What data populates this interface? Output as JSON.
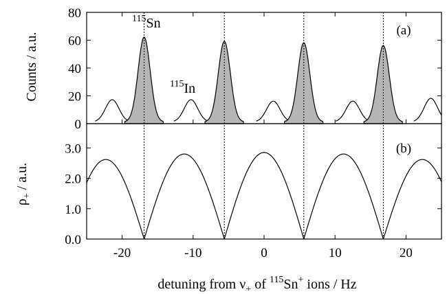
{
  "chart_data": [
    {
      "panel": "(a)",
      "type": "area",
      "ylabel": "Counts / a.u.",
      "ylim": [
        0,
        80
      ],
      "xlim": [
        -25,
        25
      ],
      "yticks": [
        "0",
        "20",
        "40",
        "60",
        "80"
      ],
      "annotations": [
        {
          "mass": "115",
          "element": "Sn",
          "x": -16.0,
          "y": 62
        },
        {
          "mass": "115",
          "element": "In",
          "x": -10.5,
          "y": 24
        }
      ],
      "series": [
        {
          "name": "115In",
          "fill": "none",
          "peaks": [
            {
              "center": -21.4,
              "height": 16
            },
            {
              "center": -10.3,
              "height": 16
            },
            {
              "center": 1.3,
              "height": 15
            },
            {
              "center": 12.5,
              "height": 15
            },
            {
              "center": 23.5,
              "height": 17
            }
          ],
          "width": 0.95,
          "baseline": 1.2
        },
        {
          "name": "115Sn",
          "fill": "#b5b5b5",
          "peaks": [
            {
              "center": -16.9,
              "height": 61
            },
            {
              "center": -5.6,
              "height": 58
            },
            {
              "center": 5.6,
              "height": 57
            },
            {
              "center": 16.8,
              "height": 55
            }
          ],
          "width": 0.85,
          "baseline": 1.2
        }
      ],
      "dotted_lines_x": [
        -16.9,
        -5.6,
        5.6,
        16.8
      ]
    },
    {
      "panel": "(b)",
      "type": "line",
      "ylabel": "ρ+ / a.u.",
      "ylabel_main": "ρ",
      "ylabel_sub": "+",
      "ylabel_tail": " / a.u.",
      "ylim": [
        0,
        3.8
      ],
      "xlim": [
        -25,
        25
      ],
      "yticks": [
        "0.0",
        "1.0",
        "2.0",
        "3.0"
      ],
      "xticks": [
        "-20",
        "-10",
        "0",
        "10",
        "20"
      ],
      "xlabel": "detuning from ν+ of 115Sn+ ions / Hz",
      "xlabel_parts": {
        "pre": "detuning from ν",
        "sub": "+",
        "mid": " of ",
        "sup_mass": "115",
        "element": "Sn",
        "sup_charge": "+",
        "post": " ions / Hz"
      },
      "zeros_x": [
        -16.9,
        -5.6,
        5.6,
        16.8
      ],
      "arch_maxima": [
        {
          "x": -22.3,
          "y": 2.62
        },
        {
          "x": -11.2,
          "y": 2.8
        },
        {
          "x": 0.0,
          "y": 2.85
        },
        {
          "x": 11.2,
          "y": 2.8
        },
        {
          "x": 22.3,
          "y": 2.62
        }
      ],
      "dotted_lines_x": [
        -16.9,
        -5.6,
        5.6,
        16.8
      ]
    }
  ]
}
